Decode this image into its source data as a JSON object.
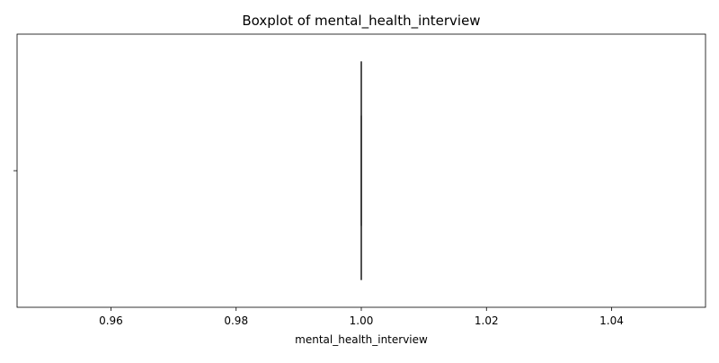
{
  "chart_data": {
    "type": "boxplot",
    "title": "Boxplot of mental_health_interview",
    "xlabel": "mental_health_interview",
    "ylabel": "",
    "xlim": [
      0.945,
      1.055
    ],
    "xticks": [
      0.96,
      0.98,
      1.0,
      1.02,
      1.04
    ],
    "xtick_labels": [
      "0.96",
      "0.98",
      "1.00",
      "1.02",
      "1.04"
    ],
    "ytick_labels": [
      ""
    ],
    "box": {
      "min": 1.0,
      "q1": 1.0,
      "median": 1.0,
      "q3": 1.0,
      "max": 1.0
    },
    "grid": false,
    "colors": {
      "line": "#3a3a3a",
      "axes": "#000000"
    }
  }
}
